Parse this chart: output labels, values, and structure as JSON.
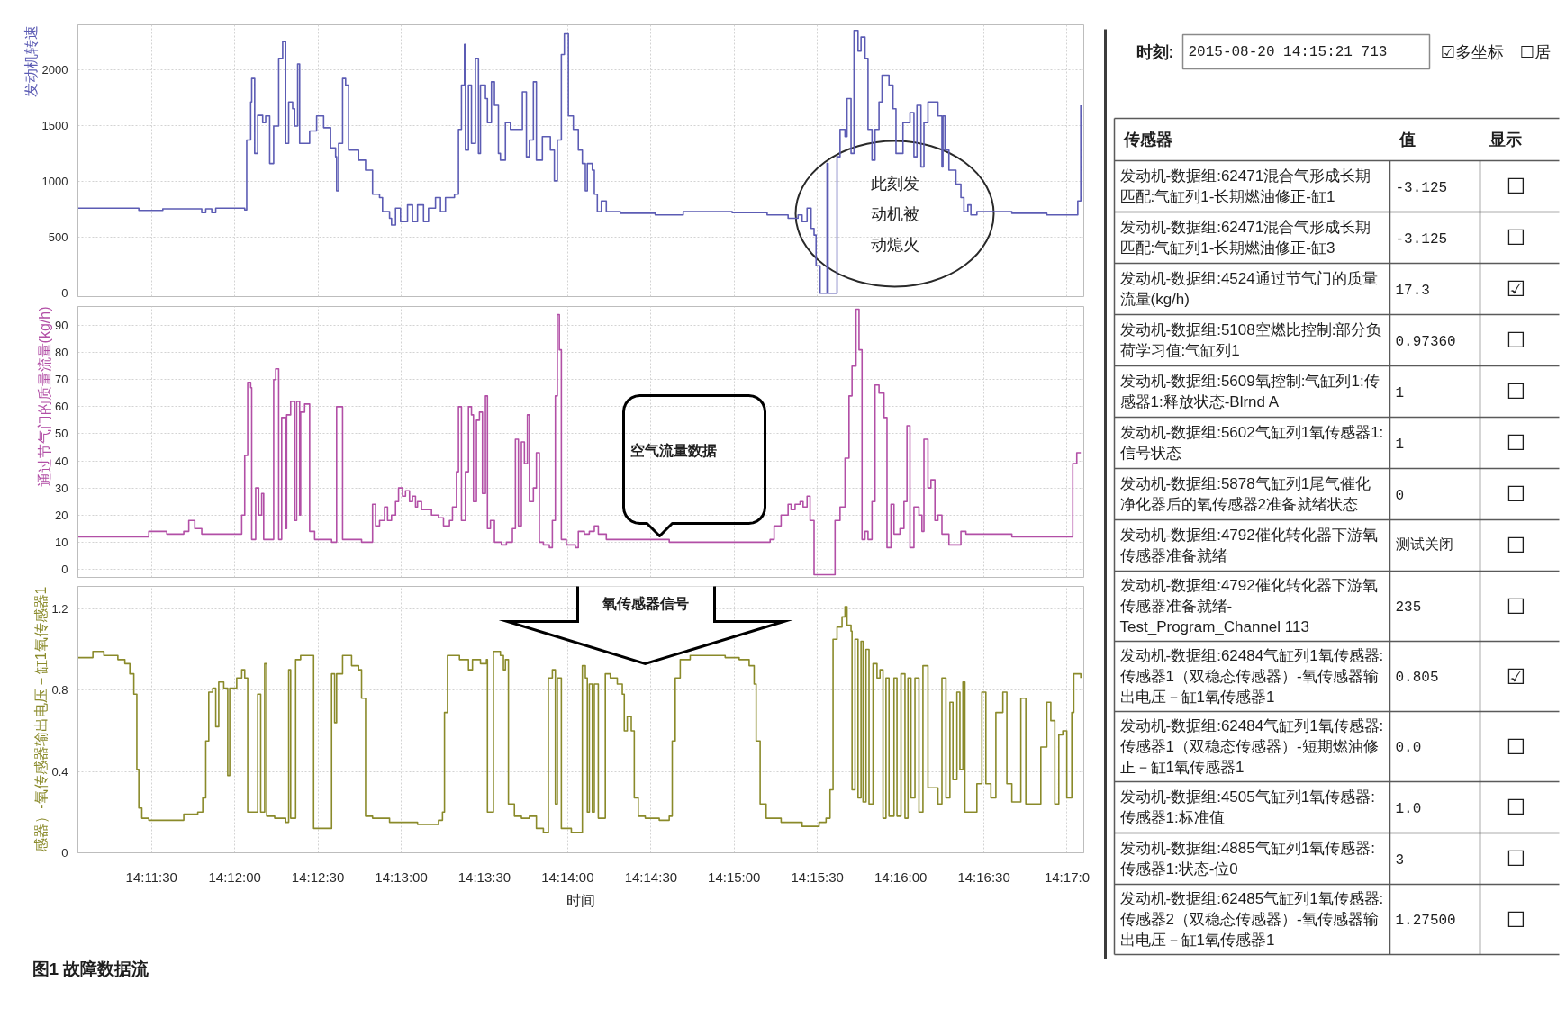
{
  "chart_data": [
    {
      "type": "step",
      "ylabel": "发动机转速",
      "color": "#5c5cb4",
      "x": [
        14.1843,
        14.1904,
        14.1928,
        14.1967,
        14.1971,
        14.1977,
        14.1981,
        14.201,
        14.2012,
        14.2016,
        14.2017,
        14.202,
        14.2023,
        14.2028,
        14.2031,
        14.2035,
        14.2039,
        14.2044,
        14.2048,
        14.2051,
        14.2054,
        14.2058,
        14.206,
        14.2063,
        14.2065,
        14.2075,
        14.2082,
        14.2089,
        14.2096,
        14.2101,
        14.2102,
        14.2104,
        14.2108,
        14.2111,
        14.2114,
        14.2124,
        14.2131,
        14.2138,
        14.2145,
        14.2148,
        14.2155,
        14.2157,
        14.2161,
        14.2166,
        14.2173,
        14.2178,
        14.2183,
        14.2189,
        14.2194,
        14.2201,
        14.2206,
        14.2211,
        14.222,
        14.2224,
        14.2227,
        14.223,
        14.2231,
        14.2234,
        14.2237,
        14.2241,
        14.2244,
        14.2246,
        14.2251,
        14.2253,
        14.2257,
        14.226,
        14.2264,
        14.2266,
        14.2271,
        14.2276,
        14.2288,
        14.2292,
        14.2295,
        14.2299,
        14.2302,
        14.2308,
        14.2316,
        14.232,
        14.2323,
        14.2327,
        14.233,
        14.2334,
        14.2339,
        14.2344,
        14.2348,
        14.2351,
        14.2353,
        14.2358,
        14.236,
        14.2363,
        14.2367,
        14.2372,
        14.2386,
        14.2421,
        14.2449,
        14.2498,
        14.2533,
        14.2554,
        14.2564,
        14.2568,
        14.2573,
        14.2577,
        14.258,
        14.2582,
        14.2586,
        14.2593,
        14.2594,
        14.2603,
        14.2606,
        14.2611,
        14.2613,
        14.2617,
        14.262,
        14.2624,
        14.2627,
        14.2631,
        14.2634,
        14.2638,
        14.2641,
        14.2645,
        14.2648,
        14.2655,
        14.2659,
        14.2662,
        14.2669,
        14.2676,
        14.268,
        14.2683,
        14.2687,
        14.269,
        14.2694,
        14.2704,
        14.2708,
        14.2709,
        14.2711,
        14.2715,
        14.2722,
        14.2727,
        14.273,
        14.2734,
        14.2737,
        14.2743,
        14.2778,
        14.2813,
        14.2844,
        14.2847
      ],
      "values": [
        760,
        740,
        755,
        720,
        755,
        720,
        760,
        745,
        1370,
        1710,
        1920,
        1250,
        1590,
        1525,
        1585,
        1160,
        1495,
        2100,
        2250,
        1340,
        1710,
        1650,
        1495,
        2050,
        1340,
        1450,
        1585,
        1480,
        1300,
        1220,
        915,
        1340,
        1920,
        1860,
        1280,
        1190,
        1100,
        885,
        855,
        730,
        670,
        610,
        760,
        640,
        790,
        640,
        790,
        640,
        760,
        855,
        730,
        855,
        885,
        1465,
        1860,
        2225,
        1280,
        1860,
        1340,
        2100,
        1250,
        1860,
        1740,
        1525,
        1890,
        1680,
        1250,
        1190,
        1525,
        1465,
        1800,
        1220,
        1370,
        1890,
        1190,
        1400,
        1280,
        1005,
        1370,
        2135,
        2320,
        1585,
        1465,
        1280,
        1160,
        915,
        1160,
        1100,
        885,
        730,
        825,
        730,
        715,
        700,
        730,
        720,
        700,
        670,
        700,
        640,
        760,
        580,
        520,
        245,
        0,
        1160,
        0,
        1220,
        1465,
        1400,
        1740,
        1250,
        2350,
        2165,
        2290,
        2100,
        1465,
        1190,
        1465,
        1710,
        1950,
        1860,
        1650,
        1250,
        1525,
        1615,
        1220,
        1680,
        1130,
        1525,
        1710,
        1585,
        1130,
        1585,
        1280,
        1100,
        975,
        855,
        730,
        790,
        700,
        730,
        715,
        700,
        825,
        1680
      ],
      "xlim": [
        14.1843,
        14.285
      ],
      "xticks": [
        {
          "value": 14.19167,
          "label": null
        },
        {
          "value": 14.2,
          "label": null
        },
        {
          "value": 14.20833,
          "label": null
        },
        {
          "value": 14.21667,
          "label": null
        },
        {
          "value": 14.225,
          "label": null
        },
        {
          "value": 14.23333,
          "label": null
        },
        {
          "value": 14.24167,
          "label": null
        },
        {
          "value": 14.25,
          "label": null
        },
        {
          "value": 14.25833,
          "label": null
        },
        {
          "value": 14.26667,
          "label": null
        },
        {
          "value": 14.275,
          "label": null
        },
        {
          "value": 14.28333,
          "label": null
        }
      ],
      "ylim": [
        -30,
        2400
      ],
      "yticks": [
        0,
        500,
        1000,
        1500,
        2000
      ],
      "grid": true,
      "tick_labels": "y",
      "annotations": [
        "此刻发动机被动熄火"
      ]
    },
    {
      "type": "step",
      "ylabel": "通过节气门的质量流量(kg/h)",
      "color": "#b24fa6",
      "x": [
        14.1843,
        14.1914,
        14.1932,
        14.1949,
        14.1954,
        14.196,
        14.1967,
        14.2007,
        14.201,
        14.2013,
        14.2016,
        14.2017,
        14.2021,
        14.2024,
        14.2027,
        14.2029,
        14.2039,
        14.2041,
        14.2044,
        14.2047,
        14.2051,
        14.2052,
        14.2056,
        14.206,
        14.2062,
        14.2065,
        14.2066,
        14.207,
        14.2075,
        14.208,
        14.2097,
        14.2102,
        14.2108,
        14.2127,
        14.2138,
        14.2141,
        14.2145,
        14.215,
        14.2153,
        14.2157,
        14.2161,
        14.2164,
        14.2168,
        14.2171,
        14.2175,
        14.2178,
        14.2181,
        14.2183,
        14.2187,
        14.2197,
        14.2204,
        14.2209,
        14.2215,
        14.2218,
        14.2222,
        14.2224,
        14.2227,
        14.2231,
        14.2234,
        14.2237,
        14.2239,
        14.2242,
        14.2245,
        14.2248,
        14.2251,
        14.2253,
        14.2256,
        14.226,
        14.2267,
        14.2272,
        14.2278,
        14.2281,
        14.2284,
        14.2287,
        14.229,
        14.2293,
        14.2295,
        14.2299,
        14.2302,
        14.2305,
        14.2309,
        14.2315,
        14.2318,
        14.2321,
        14.2323,
        14.2325,
        14.2327,
        14.2332,
        14.2341,
        14.2344,
        14.235,
        14.2355,
        14.236,
        14.2364,
        14.2372,
        14.2435,
        14.2536,
        14.254,
        14.2547,
        14.2554,
        14.2557,
        14.2561,
        14.2566,
        14.2569,
        14.2573,
        14.2576,
        14.258,
        14.2601,
        14.2606,
        14.2611,
        14.2615,
        14.2618,
        14.2622,
        14.2625,
        14.2628,
        14.2631,
        14.2634,
        14.2638,
        14.2641,
        14.2645,
        14.265,
        14.2653,
        14.2657,
        14.266,
        14.2666,
        14.267,
        14.2673,
        14.2676,
        14.268,
        14.2685,
        14.2688,
        14.269,
        14.2694,
        14.2697,
        14.2701,
        14.2704,
        14.2708,
        14.2715,
        14.2727,
        14.2732,
        14.2778,
        14.2839,
        14.2843,
        14.2847
      ],
      "values": [
        12,
        14,
        13,
        14,
        18,
        15,
        13,
        20,
        42,
        69,
        67,
        11,
        30,
        20,
        28,
        11,
        70,
        74,
        11,
        56,
        15,
        57,
        62,
        18,
        62,
        20,
        58,
        61,
        14,
        11,
        10,
        60,
        11,
        10,
        24,
        16,
        18,
        23,
        18,
        20,
        25,
        30,
        27,
        29,
        25,
        27,
        23,
        25,
        22,
        20,
        19,
        16,
        18,
        23,
        36,
        60,
        18,
        36,
        60,
        57,
        25,
        55,
        58,
        28,
        64,
        15,
        18,
        10,
        9,
        10,
        15,
        48,
        16,
        47,
        39,
        57,
        25,
        30,
        43,
        10,
        9,
        8,
        18,
        64,
        94,
        81,
        11,
        9,
        8,
        14,
        13,
        14,
        16,
        13,
        11,
        10,
        11,
        16,
        20,
        24,
        22,
        24,
        25,
        23,
        27,
        18,
        -2,
        18,
        23,
        41,
        64,
        75,
        96,
        81,
        11,
        14,
        11,
        25,
        68,
        65,
        56,
        8,
        24,
        13,
        15,
        25,
        53,
        8,
        23,
        20,
        14,
        48,
        30,
        33,
        18,
        20,
        13,
        9,
        14,
        13,
        12,
        39,
        43,
        43
      ],
      "xlim": [
        14.1843,
        14.285
      ],
      "xticks": [
        {
          "value": 14.19167,
          "label": null
        },
        {
          "value": 14.2,
          "label": null
        },
        {
          "value": 14.20833,
          "label": null
        },
        {
          "value": 14.21667,
          "label": null
        },
        {
          "value": 14.225,
          "label": null
        },
        {
          "value": 14.23333,
          "label": null
        },
        {
          "value": 14.24167,
          "label": null
        },
        {
          "value": 14.25,
          "label": null
        },
        {
          "value": 14.25833,
          "label": null
        },
        {
          "value": 14.26667,
          "label": null
        },
        {
          "value": 14.275,
          "label": null
        },
        {
          "value": 14.28333,
          "label": null
        }
      ],
      "ylim": [
        -3,
        97
      ],
      "yticks": [
        0,
        10,
        20,
        30,
        40,
        50,
        60,
        70,
        80,
        90
      ],
      "grid": true,
      "tick_labels": "y",
      "annotations": [
        "空气流量数据"
      ]
    },
    {
      "type": "step",
      "ylabel": "感器）-氧传感器输出电压－缸1氧传感器1",
      "xlabel": "时间",
      "color": "#8a8a2a",
      "x": [
        14.1843,
        14.1858,
        14.1869,
        14.1883,
        14.189,
        14.1895,
        14.1899,
        14.1902,
        14.1904,
        14.1907,
        14.1914,
        14.1949,
        14.1963,
        14.1968,
        14.1971,
        14.1974,
        14.1978,
        14.1981,
        14.1984,
        14.1989,
        14.1993,
        14.1995,
        14.2002,
        14.2007,
        14.201,
        14.2013,
        14.2023,
        14.2026,
        14.203,
        14.2032,
        14.204,
        14.2051,
        14.2054,
        14.2056,
        14.2061,
        14.2066,
        14.2079,
        14.2097,
        14.21,
        14.2102,
        14.2108,
        14.2117,
        14.2124,
        14.2127,
        14.2131,
        14.2138,
        14.2155,
        14.2183,
        14.2204,
        14.2208,
        14.221,
        14.2213,
        14.2225,
        14.2234,
        14.2238,
        14.2246,
        14.2252,
        14.2253,
        14.2259,
        14.2266,
        14.2269,
        14.2271,
        14.2274,
        14.228,
        14.2287,
        14.2295,
        14.2302,
        14.2309,
        14.2314,
        14.2318,
        14.2321,
        14.2323,
        14.2327,
        14.2337,
        14.2348,
        14.2351,
        14.2353,
        14.2355,
        14.2358,
        14.236,
        14.2364,
        14.2371,
        14.2376,
        14.2383,
        14.2388,
        14.239,
        14.2393,
        14.2397,
        14.24,
        14.2404,
        14.2411,
        14.2425,
        14.2435,
        14.2438,
        14.2441,
        14.2446,
        14.2456,
        14.2491,
        14.2505,
        14.2515,
        14.252,
        14.2522,
        14.2526,
        14.2532,
        14.2547,
        14.2568,
        14.2585,
        14.2592,
        14.2596,
        14.2599,
        14.2603,
        14.2608,
        14.2611,
        14.2613,
        14.2617,
        14.2618,
        14.2621,
        14.2624,
        14.2627,
        14.2629,
        14.2632,
        14.2635,
        14.2639,
        14.2643,
        14.2646,
        14.2649,
        14.2652,
        14.2655,
        14.266,
        14.2663,
        14.2667,
        14.2671,
        14.2674,
        14.2677,
        14.2681,
        14.2685,
        14.2689,
        14.2694,
        14.2704,
        14.2708,
        14.2712,
        14.2716,
        14.2719,
        14.2723,
        14.2726,
        14.2729,
        14.2731,
        14.2743,
        14.2748,
        14.2752,
        14.2757,
        14.2762,
        14.2769,
        14.2773,
        14.2778,
        14.2787,
        14.2792,
        14.2807,
        14.2813,
        14.2817,
        14.2821,
        14.2825,
        14.2829,
        14.2833,
        14.2838,
        14.284,
        14.2847
      ],
      "values": [
        0.96,
        0.99,
        0.97,
        0.95,
        0.93,
        0.88,
        0.78,
        0.41,
        0.22,
        0.17,
        0.16,
        0.19,
        0.2,
        0.27,
        0.55,
        0.79,
        0.81,
        0.62,
        0.84,
        0.81,
        0.38,
        0.81,
        0.86,
        0.9,
        0.86,
        0.2,
        0.78,
        0.2,
        0.93,
        0.18,
        0.17,
        0.15,
        0.9,
        0.17,
        0.95,
        0.97,
        0.12,
        0.88,
        0.64,
        0.88,
        0.97,
        0.92,
        0.9,
        0.76,
        0.18,
        0.17,
        0.15,
        0.14,
        0.16,
        0.2,
        0.69,
        0.97,
        0.95,
        0.9,
        0.95,
        0.93,
        0.95,
        0.2,
        0.99,
        0.97,
        0.9,
        0.95,
        0.24,
        0.18,
        0.17,
        0.18,
        0.12,
        0.1,
        0.86,
        0.9,
        0.24,
        0.86,
        0.12,
        0.1,
        0.92,
        0.86,
        0.2,
        0.83,
        0.2,
        0.83,
        0.17,
        0.88,
        0.86,
        0.83,
        0.78,
        0.6,
        0.67,
        0.6,
        0.27,
        0.18,
        0.17,
        0.16,
        0.18,
        0.55,
        0.86,
        0.95,
        0.97,
        0.96,
        0.95,
        0.92,
        0.83,
        0.55,
        0.24,
        0.17,
        0.15,
        0.13,
        0.15,
        0.17,
        0.31,
        1.05,
        1.11,
        1.16,
        1.21,
        1.12,
        1.09,
        0.31,
        1.05,
        0.27,
        1.04,
        0.25,
        1.0,
        0.24,
        0.93,
        0.86,
        0.9,
        0.17,
        0.86,
        0.18,
        0.86,
        0.18,
        0.88,
        0.17,
        0.86,
        0.27,
        0.86,
        0.2,
        0.92,
        0.32,
        0.24,
        0.86,
        0.27,
        0.74,
        0.36,
        0.79,
        0.41,
        0.84,
        0.2,
        0.34,
        0.79,
        0.34,
        0.27,
        0.69,
        0.79,
        0.34,
        0.25,
        0.76,
        0.24,
        0.52,
        0.74,
        0.65,
        0.24,
        0.58,
        0.6,
        0.27,
        0.69,
        0.88,
        0.86
      ],
      "xlim": [
        14.1843,
        14.285
      ],
      "xticks": [
        {
          "value": 14.19167,
          "label": "14:11:30"
        },
        {
          "value": 14.2,
          "label": "14:12:00"
        },
        {
          "value": 14.20833,
          "label": "14:12:30"
        },
        {
          "value": 14.21667,
          "label": "14:13:00"
        },
        {
          "value": 14.225,
          "label": "14:13:30"
        },
        {
          "value": 14.23333,
          "label": "14:14:00"
        },
        {
          "value": 14.24167,
          "label": "14:14:30"
        },
        {
          "value": 14.25,
          "label": "14:15:00"
        },
        {
          "value": 14.25833,
          "label": "14:15:30"
        },
        {
          "value": 14.26667,
          "label": "14:16:00"
        },
        {
          "value": 14.275,
          "label": "14:16:30"
        },
        {
          "value": 14.28333,
          "label": "14:17:0"
        }
      ],
      "ylim": [
        0,
        1.31
      ],
      "yticks": [
        0,
        0.4,
        0.8,
        1.2
      ],
      "grid": true,
      "annotations": [
        "氧传感器信号",
        "图1  故障数据流"
      ]
    },
    {
      "type": "other",
      "annotations": [
        "时刻:",
        "2015-08-20 14:15:21 713",
        "☑多坐标",
        "☐居"
      ],
      "categories": [
        "传感器",
        "值",
        "显示"
      ],
      "cell_labels": [
        [
          "发动机-数据组:62471混合气形成长期匹配:气缸列1-长期燃油修正-缸1",
          "-3.125",
          "☐"
        ],
        [
          "发动机-数据组:62471混合气形成长期匹配:气缸列1-长期燃油修正-缸3",
          "-3.125",
          "☐"
        ],
        [
          "发动机-数据组:4524通过节气门的质量流量(kg/h)",
          "17.3",
          "☑"
        ],
        [
          "发动机-数据组:5108空燃比控制:部分负荷学习值:气缸列1",
          "0.97360",
          "☐"
        ],
        [
          "发动机-数据组:5609氧控制:气缸列1:传感器1:释放状态-Blrnd A",
          "1",
          "☐"
        ],
        [
          "发动机-数据组:5602气缸列1氧传感器1:信号状态",
          "1",
          "☐"
        ],
        [
          "发动机-数据组:5878气缸列1尾气催化净化器后的氧传感器2准备就绪状态",
          "0",
          "☐"
        ],
        [
          "发动机-数据组:4792催化转化器下游氧传感器准备就绪",
          "测试关闭",
          "☐"
        ],
        [
          "发动机-数据组:4792催化转化器下游氧传感器准备就绪-Test_Program_Channel 113",
          "235",
          "☐"
        ],
        [
          "发动机-数据组:62484气缸列1氧传感器:传感器1（双稳态传感器）-氧传感器输出电压－缸1氧传感器1",
          "0.805",
          "☑"
        ],
        [
          "发动机-数据组:62484气缸列1氧传感器:传感器1（双稳态传感器）-短期燃油修正－缸1氧传感器1",
          "0.0",
          "☐"
        ],
        [
          "发动机-数据组:4505气缸列1氧传感器:传感器1:标准值",
          "1.0",
          "☐"
        ],
        [
          "发动机-数据组:4885气缸列1氧传感器:传感器1:状态-位0",
          "3",
          "☐"
        ],
        [
          "发动机-数据组:62485气缸列1氧传感器:传感器2（双稳态传感器）-氧传感器输出电压－缸1氧传感器1",
          "1.27500",
          "☐"
        ]
      ]
    }
  ]
}
